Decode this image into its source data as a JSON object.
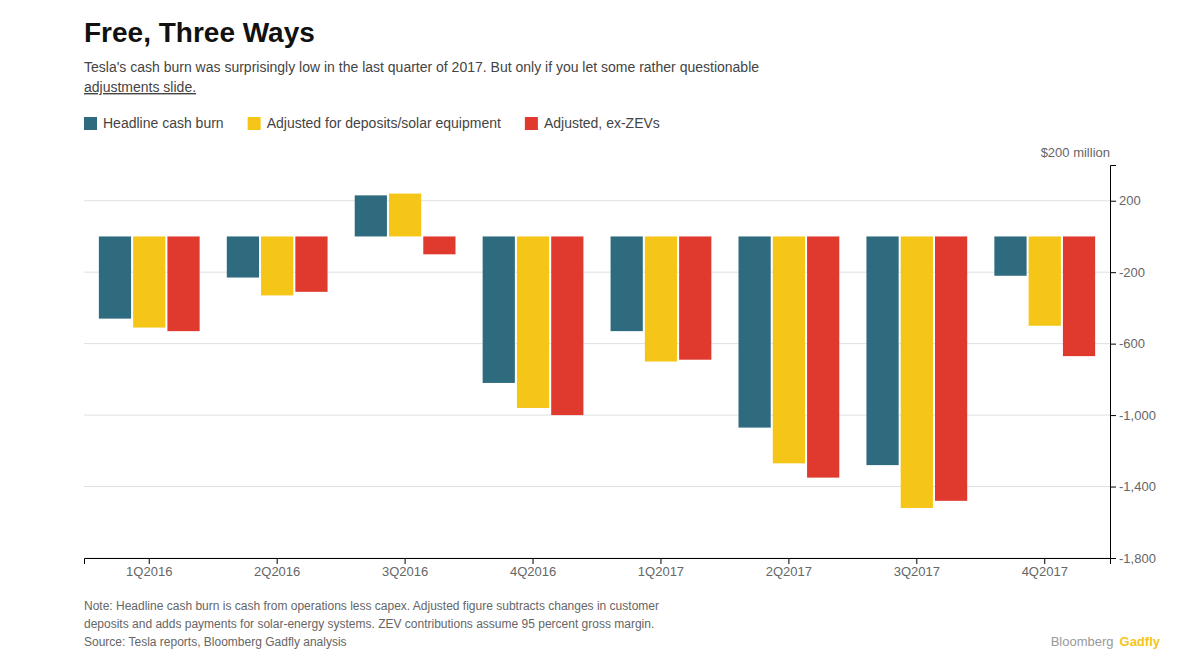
{
  "chart_data": {
    "type": "bar",
    "title": "Free, Three Ways",
    "subtitle": [
      "Tesla's cash burn was surprisingly low in the last quarter of 2017. But only if you let some rather questionable",
      "adjustments slide."
    ],
    "categories": [
      "1Q2016",
      "2Q2016",
      "3Q2016",
      "4Q2016",
      "1Q2017",
      "2Q2017",
      "3Q2017",
      "4Q2017"
    ],
    "series": [
      {
        "name": "Headline cash burn",
        "color": "#2E6B7E",
        "values": [
          -460,
          -230,
          230,
          -820,
          -530,
          -1070,
          -1280,
          -220
        ]
      },
      {
        "name": "Adjusted for deposits/solar equipment",
        "color": "#F5C518",
        "values": [
          -510,
          -330,
          240,
          -960,
          -700,
          -1270,
          -1520,
          -500
        ]
      },
      {
        "name": "Adjusted, ex-ZEVs",
        "color": "#E03A2E",
        "values": [
          -530,
          -310,
          -100,
          -1000,
          -690,
          -1350,
          -1480,
          -670
        ]
      }
    ],
    "ylim": [
      -1800,
      400
    ],
    "yticks": [
      200,
      -200,
      -600,
      {
        "value": -1000,
        "label": "-1,000"
      },
      {
        "value": -1400,
        "label": "-1,400"
      },
      {
        "value": -1800,
        "label": "-1,800"
      }
    ],
    "annotations": [
      "$200 million"
    ],
    "notes": [
      "Note: Headline cash burn is cash from operations less capex. Adjusted figure subtracts changes in customer",
      "deposits and adds payments for solar-energy systems. ZEV contributions assume 95 percent gross margin.",
      "Source: Tesla reports, Bloomberg Gadfly analysis"
    ],
    "branding": [
      {
        "text": "Bloomberg",
        "color": "#999999"
      },
      {
        "text": "Gadfly",
        "color": "#F5C518"
      }
    ],
    "grid": true,
    "legend": "top-left"
  }
}
